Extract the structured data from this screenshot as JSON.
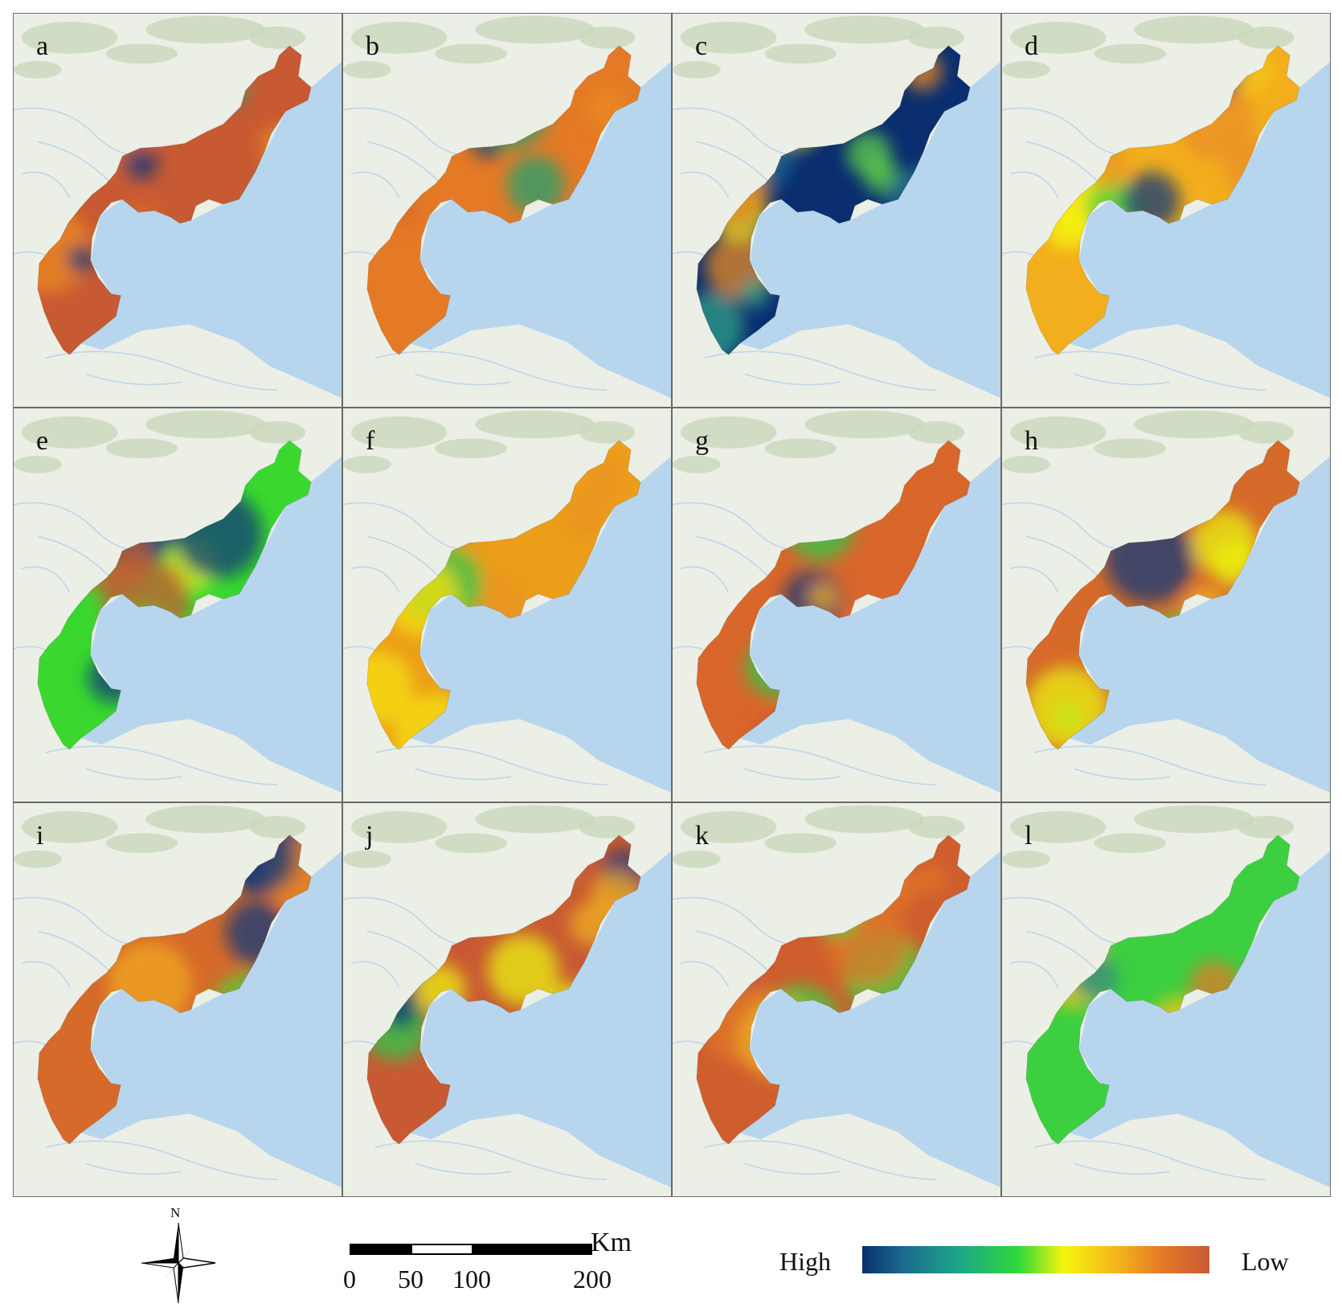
{
  "panels": [
    {
      "id": "a",
      "label": "a",
      "scheme": [
        "#c85a33",
        "#d96a28",
        "#ea8a20",
        "#20a070",
        "#eaf010",
        "#0a3a7a"
      ]
    },
    {
      "id": "b",
      "label": "b",
      "scheme": [
        "#e47a26",
        "#ea8a20",
        "#d96a28",
        "#20a070",
        "#eaf010",
        "#0a3a7a"
      ]
    },
    {
      "id": "c",
      "label": "c",
      "scheme": [
        "#0a2e70",
        "#1a6a8e",
        "#2ea088",
        "#5fd24a",
        "#f2e21e",
        "#e88a20"
      ]
    },
    {
      "id": "d",
      "label": "d",
      "scheme": [
        "#f2ae1c",
        "#f5c515",
        "#ea9025",
        "#f5f50f",
        "#3cd040",
        "#0a3a7a"
      ]
    },
    {
      "id": "e",
      "label": "e",
      "scheme": [
        "#3ad82e",
        "#2ec84a",
        "#1a7a8a",
        "#0a3a7a",
        "#c85a33",
        "#eaf010"
      ]
    },
    {
      "id": "f",
      "label": "f",
      "scheme": [
        "#ec9e1a",
        "#f0a81c",
        "#e89422",
        "#f5e010",
        "#2ec84a",
        "#0a3a7a"
      ]
    },
    {
      "id": "g",
      "label": "g",
      "scheme": [
        "#d9662a",
        "#e0762a",
        "#cc5a2c",
        "#f0b020",
        "#2ec84a",
        "#0a3a7a"
      ]
    },
    {
      "id": "h",
      "label": "h",
      "scheme": [
        "#d66a2a",
        "#f2c020",
        "#50d23a",
        "#eaf010",
        "#e98a22",
        "#0a3a7a"
      ]
    },
    {
      "id": "i",
      "label": "i",
      "scheme": [
        "#d66a2a",
        "#f0a820",
        "#eaf010",
        "#50d23a",
        "#e88a22",
        "#0a3a7a"
      ]
    },
    {
      "id": "j",
      "label": "j",
      "scheme": [
        "#c85a33",
        "#d2602e",
        "#f0b020",
        "#eaf010",
        "#2ec84a",
        "#0a3a7a"
      ]
    },
    {
      "id": "k",
      "label": "k",
      "scheme": [
        "#cf5e2e",
        "#e0782a",
        "#f0b020",
        "#eaf010",
        "#3cd040",
        "#0a3a7a"
      ]
    },
    {
      "id": "l",
      "label": "l",
      "scheme": [
        "#3cd040",
        "#e0782a",
        "#f5c01c",
        "#eaf010",
        "#1a8a8a",
        "#0a3a7a"
      ]
    }
  ],
  "basemap": {
    "land": "#ecefe6",
    "sea": "#b7d6ee",
    "hills": "#c9d8bc",
    "rivers": "#bcd4ea"
  },
  "north": {
    "label": "N"
  },
  "scalebar": {
    "ticks": [
      "0",
      "50",
      "100",
      "200"
    ],
    "unit": "Km"
  },
  "legend": {
    "high": "High",
    "low": "Low",
    "gradient": [
      "#08306b",
      "#1ea68a",
      "#2ed93a",
      "#f5f50f",
      "#f5b21c",
      "#c85a33"
    ]
  }
}
